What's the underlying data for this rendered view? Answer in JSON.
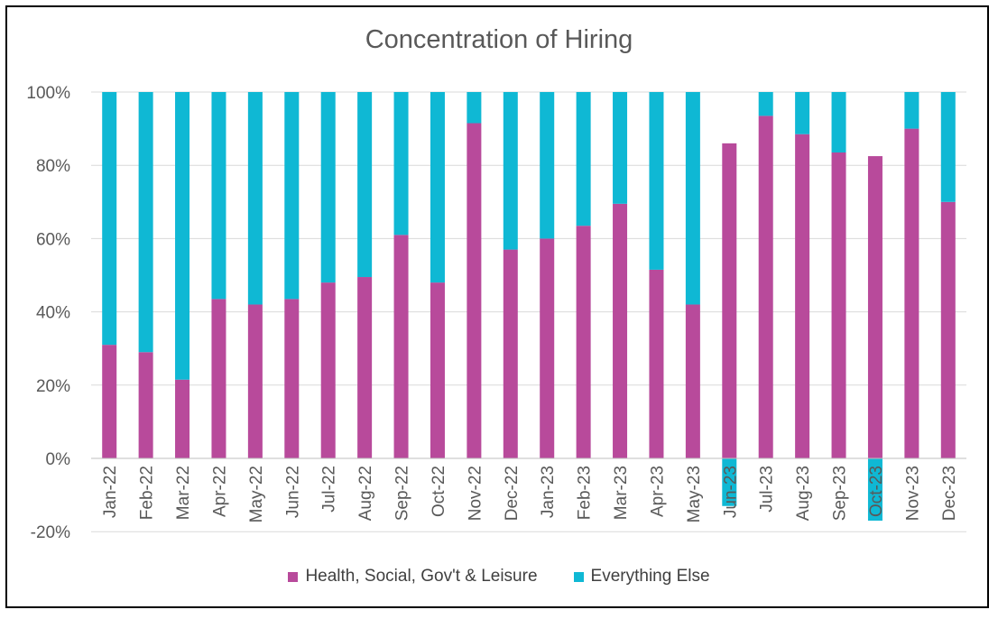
{
  "chart_data": {
    "type": "bar",
    "stacked": true,
    "title": "Concentration of Hiring",
    "categories": [
      "Jan-22",
      "Feb-22",
      "Mar-22",
      "Apr-22",
      "May-22",
      "Jun-22",
      "Jul-22",
      "Aug-22",
      "Sep-22",
      "Oct-22",
      "Nov-22",
      "Dec-22",
      "Jan-23",
      "Feb-23",
      "Mar-23",
      "Apr-23",
      "May-23",
      "Jun-23",
      "Jul-23",
      "Aug-23",
      "Sep-23",
      "Oct-23",
      "Nov-23",
      "Dec-23"
    ],
    "series": [
      {
        "name": "Health, Social, Gov't & Leisure",
        "color": "#B84A9B",
        "values": [
          31,
          29,
          21.5,
          43.5,
          42,
          43.5,
          48,
          49.5,
          61,
          48,
          91.5,
          57,
          60,
          63.5,
          69.5,
          51.5,
          42,
          86,
          93.5,
          88.5,
          83.5,
          82.5,
          90,
          70
        ]
      },
      {
        "name": "Everything Else",
        "color": "#0FB8D4",
        "values": [
          69,
          71,
          78.5,
          56.5,
          58,
          56.5,
          52,
          50.5,
          39,
          52,
          8.5,
          43,
          40,
          36.5,
          30.5,
          48.5,
          58,
          -13,
          6.5,
          11.5,
          16.5,
          -17,
          10,
          30
        ]
      }
    ],
    "ylim": [
      -20,
      100
    ],
    "yticks": [
      "-20%",
      "0%",
      "20%",
      "40%",
      "60%",
      "80%",
      "100%"
    ],
    "ytick_values": [
      -20,
      0,
      20,
      40,
      60,
      80,
      100
    ],
    "grid": true,
    "legend_position": "bottom"
  }
}
